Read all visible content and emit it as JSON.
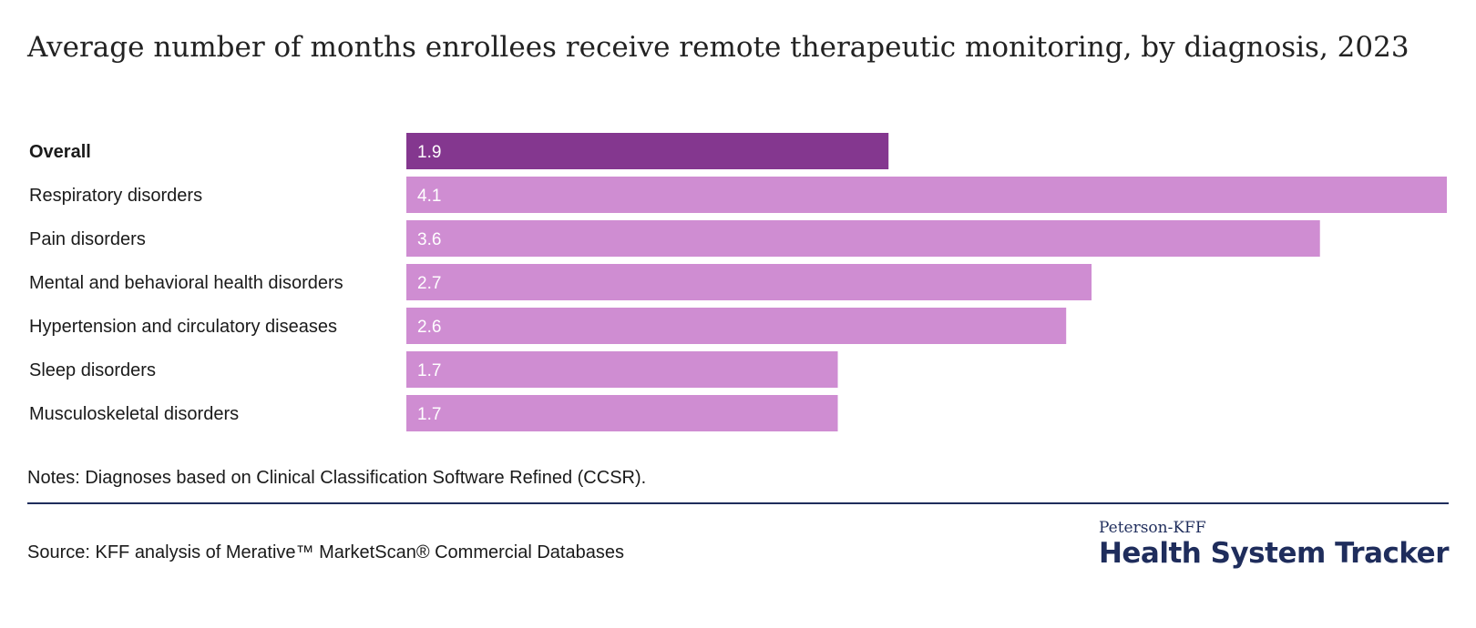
{
  "chart_data": {
    "type": "bar",
    "orientation": "horizontal",
    "title": "Average number of months enrollees receive remote therapeutic monitoring, by diagnosis, 2023",
    "categories": [
      "Overall",
      "Respiratory disorders",
      "Pain disorders",
      "Mental and behavioral health disorders",
      "Hypertension and circulatory diseases",
      "Sleep disorders",
      "Musculoskeletal disorders"
    ],
    "values": [
      1.9,
      4.1,
      3.6,
      2.7,
      2.6,
      1.7,
      1.7
    ],
    "value_labels": [
      "1.9",
      "4.1",
      "3.6",
      "2.7",
      "2.6",
      "1.7",
      "1.7"
    ],
    "highlight_index": 0,
    "colors": {
      "highlight": "#84378f",
      "default": "#cf8dd2",
      "label_text": "#ffffff"
    },
    "xlabel": "",
    "ylabel": "",
    "xlim": [
      0,
      4.1
    ],
    "grid": false,
    "legend": "none"
  },
  "notes": "Notes: Diagnoses based on Clinical Classification Software Refined (CCSR).",
  "source": "Source: KFF analysis of Merative™ MarketScan® Commercial Databases",
  "logo": {
    "top": "Peterson-KFF",
    "main": "Health System Tracker",
    "color": "#1f2d5c"
  }
}
